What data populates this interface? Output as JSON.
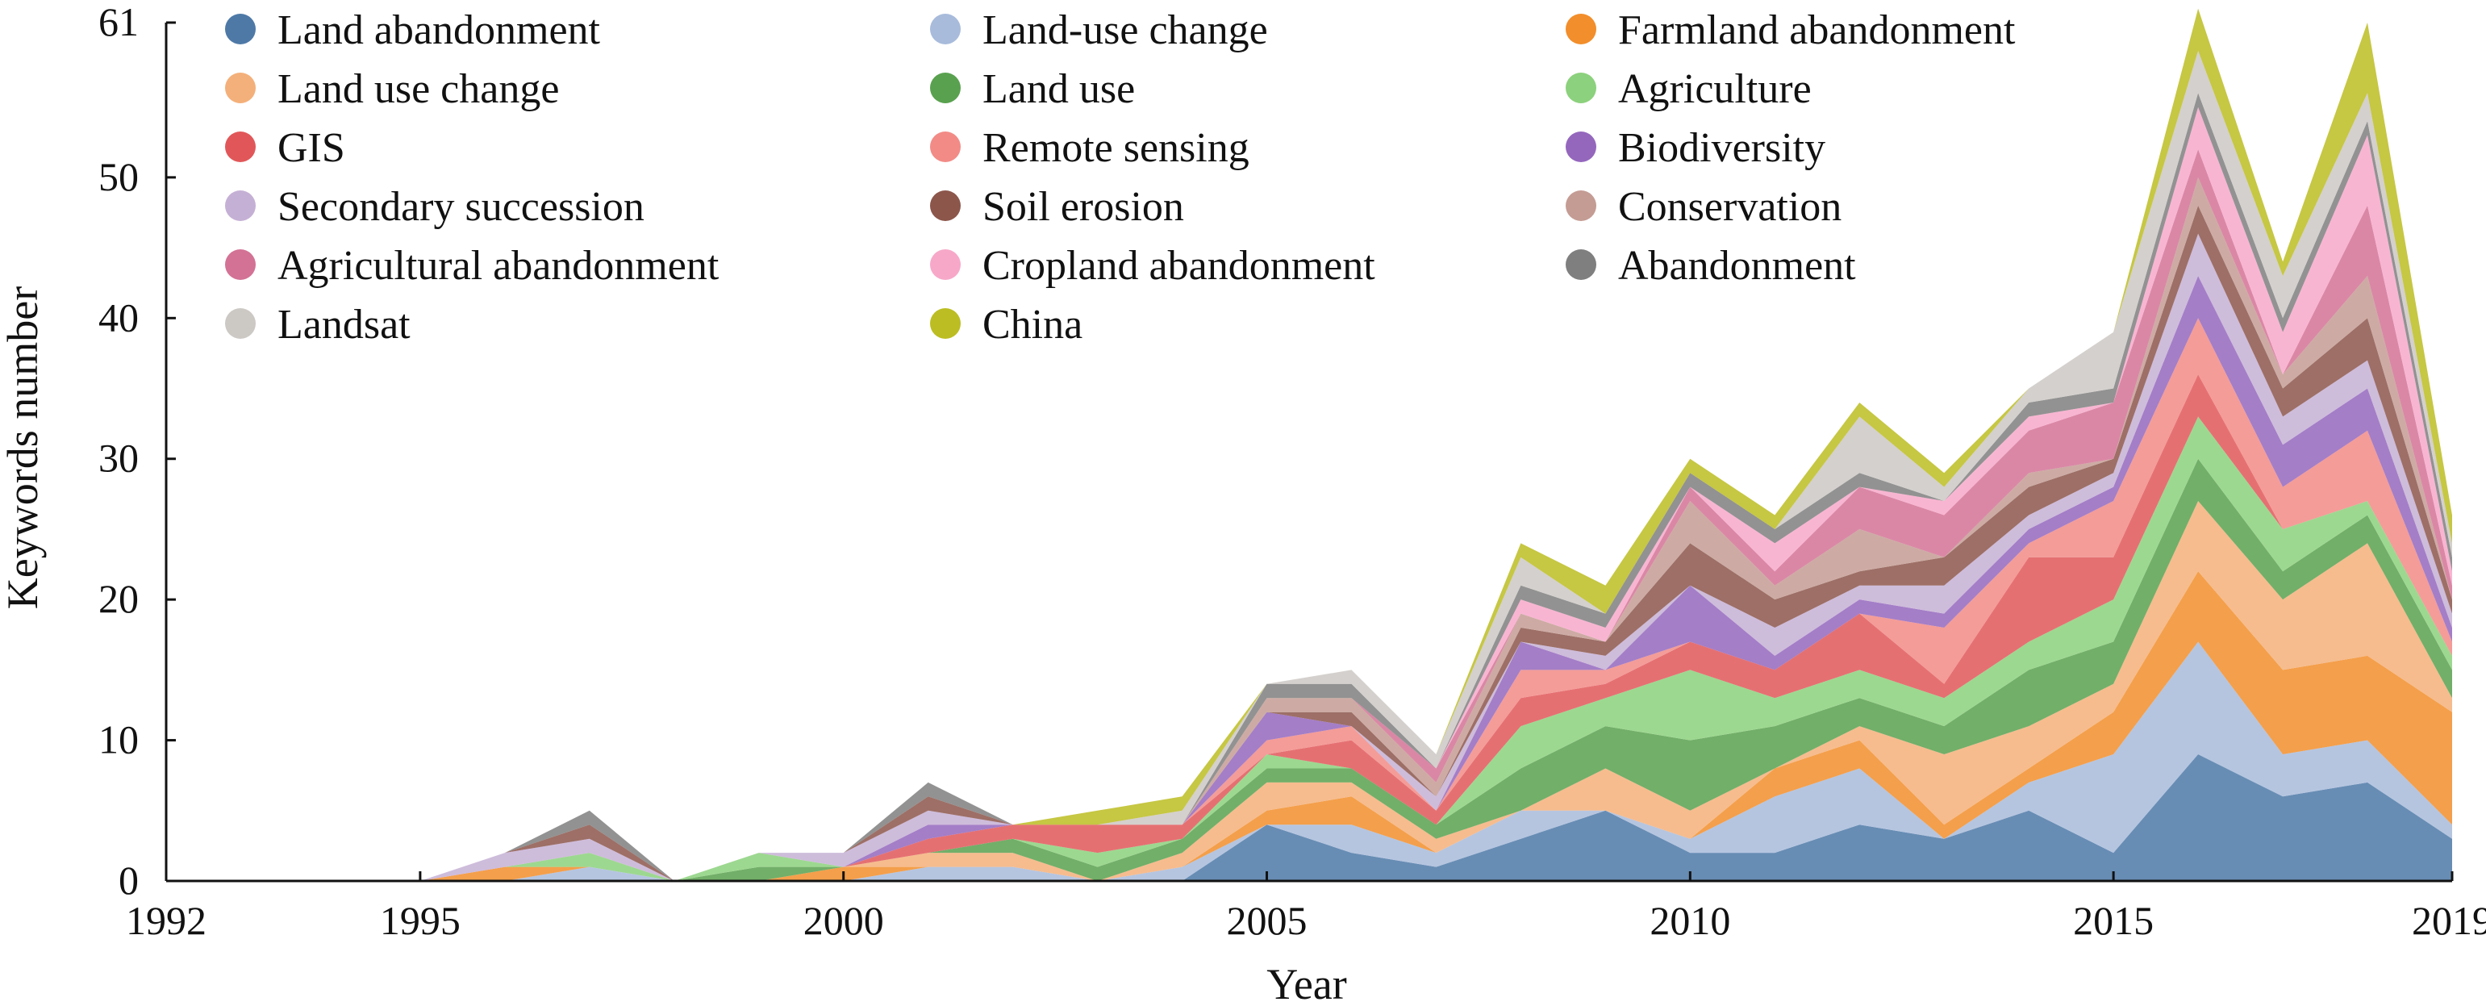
{
  "chart_data": {
    "type": "area",
    "stacked": true,
    "xlabel": "Year",
    "ylabel": "Keywords number",
    "xlim": [
      1992,
      2019
    ],
    "ylim": [
      0,
      61
    ],
    "x_ticks": [
      "1992",
      "1995",
      "2000",
      "2005",
      "2010",
      "2015",
      "2019"
    ],
    "y_ticks": [
      "0",
      "10",
      "20",
      "30",
      "40",
      "50",
      "61"
    ],
    "grid": false,
    "legend_position": "top-left",
    "x": [
      1995,
      1996,
      1997,
      1998,
      1999,
      2000,
      2001,
      2002,
      2003,
      2004,
      2005,
      2006,
      2007,
      2008,
      2009,
      2010,
      2011,
      2012,
      2013,
      2014,
      2015,
      2016,
      2017,
      2018,
      2019
    ],
    "series": [
      {
        "name": "Land abandonment",
        "color": "#4E79A7",
        "values": [
          0,
          0,
          0,
          0,
          0,
          0,
          0,
          0,
          0,
          0,
          4,
          2,
          1,
          3,
          5,
          2,
          2,
          4,
          3,
          5,
          2,
          9,
          6,
          7,
          3
        ]
      },
      {
        "name": "Land-use change",
        "color": "#A8BBDB",
        "values": [
          0,
          0,
          1,
          0,
          0,
          0,
          1,
          1,
          0,
          1,
          0,
          2,
          1,
          2,
          0,
          1,
          4,
          4,
          0,
          2,
          7,
          8,
          3,
          3,
          1
        ]
      },
      {
        "name": "Farmland abandonment",
        "color": "#F28E2B",
        "values": [
          0,
          1,
          0,
          0,
          0,
          1,
          0,
          0,
          0,
          0,
          1,
          2,
          0,
          0,
          0,
          0,
          2,
          2,
          1,
          1,
          3,
          5,
          6,
          6,
          8
        ]
      },
      {
        "name": "Land use change",
        "color": "#F4B07A",
        "values": [
          0,
          0,
          0,
          0,
          0,
          0,
          1,
          1,
          0,
          1,
          2,
          1,
          1,
          0,
          3,
          2,
          0,
          1,
          5,
          3,
          2,
          5,
          5,
          8,
          1
        ]
      },
      {
        "name": "Land use",
        "color": "#59A14F",
        "values": [
          0,
          0,
          0,
          0,
          1,
          0,
          0,
          1,
          1,
          1,
          1,
          1,
          1,
          3,
          3,
          5,
          3,
          2,
          2,
          4,
          3,
          3,
          2,
          2,
          2
        ]
      },
      {
        "name": "Agriculture",
        "color": "#8CD17D",
        "values": [
          0,
          0,
          1,
          0,
          1,
          0,
          0,
          0,
          1,
          0,
          1,
          0,
          0,
          3,
          2,
          5,
          2,
          2,
          2,
          2,
          3,
          3,
          3,
          1,
          1
        ]
      },
      {
        "name": "GIS",
        "color": "#E15759",
        "values": [
          0,
          0,
          0,
          0,
          0,
          0,
          1,
          1,
          2,
          1,
          0,
          2,
          1,
          2,
          1,
          2,
          2,
          4,
          1,
          6,
          3,
          3,
          0,
          0,
          0
        ]
      },
      {
        "name": "Remote sensing",
        "color": "#F28B86",
        "values": [
          0,
          0,
          0,
          0,
          0,
          0,
          0,
          0,
          0,
          0,
          1,
          1,
          0,
          2,
          1,
          0,
          0,
          0,
          4,
          1,
          4,
          4,
          3,
          5,
          1
        ]
      },
      {
        "name": "Biodiversity",
        "color": "#9467BD",
        "values": [
          0,
          0,
          0,
          0,
          0,
          0,
          1,
          0,
          0,
          0,
          2,
          0,
          0,
          2,
          0,
          4,
          1,
          1,
          1,
          1,
          1,
          3,
          3,
          3,
          1
        ]
      },
      {
        "name": "Secondary succession",
        "color": "#C5B0D5",
        "values": [
          0,
          1,
          1,
          0,
          0,
          1,
          1,
          0,
          0,
          0,
          0,
          0,
          1,
          0,
          1,
          0,
          2,
          1,
          2,
          1,
          1,
          3,
          2,
          2,
          1
        ]
      },
      {
        "name": "Soil erosion",
        "color": "#8C564B",
        "values": [
          0,
          0,
          1,
          0,
          0,
          0,
          1,
          0,
          0,
          0,
          0,
          1,
          0,
          1,
          1,
          3,
          2,
          1,
          2,
          2,
          1,
          2,
          2,
          3,
          1
        ]
      },
      {
        "name": "Conservation",
        "color": "#C49C94",
        "values": [
          0,
          0,
          0,
          0,
          0,
          0,
          0,
          0,
          0,
          0,
          1,
          1,
          1,
          1,
          0,
          3,
          1,
          3,
          0,
          1,
          0,
          2,
          1,
          3,
          0
        ]
      },
      {
        "name": "Agricultural abandonment",
        "color": "#D37295",
        "values": [
          0,
          0,
          0,
          0,
          0,
          0,
          0,
          0,
          0,
          0,
          0,
          0,
          1,
          0,
          0,
          1,
          1,
          3,
          3,
          3,
          4,
          2,
          0,
          5,
          1
        ]
      },
      {
        "name": "Cropland abandonment",
        "color": "#F7A8C9",
        "values": [
          0,
          0,
          0,
          0,
          0,
          0,
          0,
          0,
          0,
          0,
          0,
          0,
          0,
          1,
          1,
          0,
          2,
          0,
          1,
          1,
          0,
          3,
          3,
          5,
          1
        ]
      },
      {
        "name": "Abandonment",
        "color": "#7F7F7F",
        "values": [
          0,
          0,
          1,
          0,
          0,
          0,
          1,
          0,
          0,
          0,
          1,
          1,
          0,
          1,
          1,
          1,
          1,
          1,
          0,
          1,
          1,
          1,
          1,
          1,
          1
        ]
      },
      {
        "name": "Landsat",
        "color": "#CCC8C4",
        "values": [
          0,
          0,
          0,
          0,
          0,
          0,
          0,
          0,
          0,
          1,
          0,
          1,
          1,
          2,
          0,
          0,
          0,
          4,
          1,
          1,
          4,
          3,
          3,
          2,
          1
        ]
      },
      {
        "name": "China",
        "color": "#BCBD22",
        "values": [
          0,
          0,
          0,
          0,
          0,
          0,
          0,
          0,
          1,
          1,
          0,
          0,
          0,
          1,
          2,
          1,
          1,
          1,
          1,
          0,
          0,
          3,
          1,
          5,
          2
        ]
      }
    ]
  }
}
